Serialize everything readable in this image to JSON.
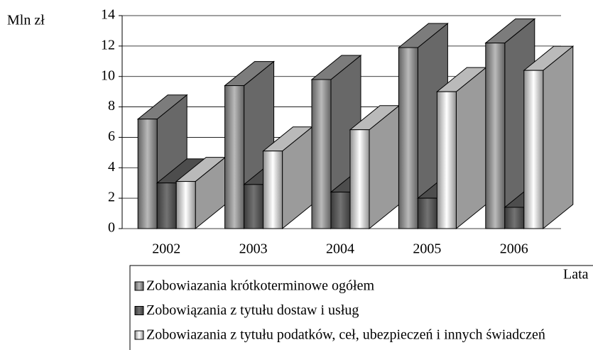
{
  "chart_data": {
    "type": "bar3d",
    "ylabel": "Mln zł",
    "xlabel": "Lata",
    "categories": [
      "2002",
      "2003",
      "2004",
      "2005",
      "2006"
    ],
    "series": [
      {
        "name": "Zobowiazania krótkoterminowe ogółem",
        "color": "#8a8a8a",
        "values": [
          7.2,
          9.4,
          9.8,
          11.9,
          12.2
        ]
      },
      {
        "name": "Zobowiązania z tytułu dostaw i usług",
        "color": "#555555",
        "values": [
          3.0,
          2.9,
          2.4,
          2.0,
          1.4
        ]
      },
      {
        "name": "Zobowiazania z tytułu podatków, ceł, ubezpieczeń i innych świadczeń",
        "color": "#cfcfcf",
        "values": [
          3.1,
          5.1,
          6.5,
          9.0,
          10.4
        ]
      }
    ],
    "ylim": [
      0,
      14
    ],
    "yticks": [
      0,
      2,
      4,
      6,
      8,
      10,
      12,
      14
    ],
    "grid": true
  }
}
